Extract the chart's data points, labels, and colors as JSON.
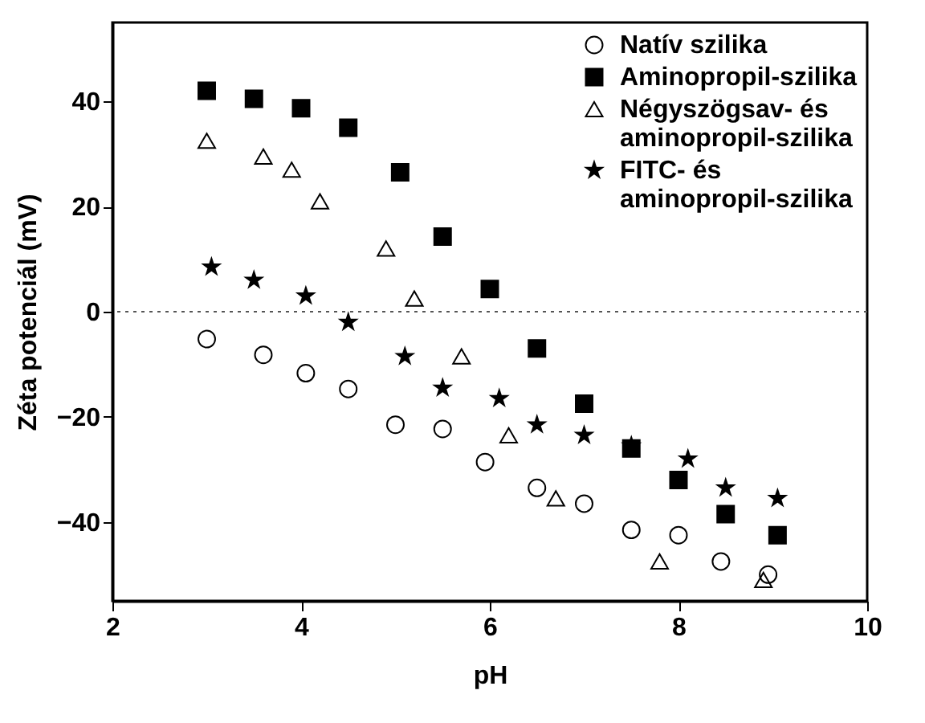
{
  "chart_data": {
    "type": "scatter",
    "xlabel": "pH",
    "ylabel": "Zéta potenciál (mV)",
    "xlim": [
      2,
      10
    ],
    "xticks": [
      2,
      4,
      6,
      8,
      10
    ],
    "ylim": [
      -55,
      55
    ],
    "yticks": [
      -40,
      -20,
      0,
      20,
      40
    ],
    "grid": false,
    "legend": "top right",
    "ref_lines": [
      {
        "axis": "y",
        "value": 0,
        "line_style": "dotted",
        "color": "#555555"
      }
    ],
    "series": [
      {
        "name": "Natív szilika",
        "color": "#000000",
        "marker": "circle",
        "x": [
          3,
          3.6,
          4.05,
          4.5,
          5,
          5.5,
          5.95,
          6.5,
          7,
          7.5,
          8,
          8.45,
          8.95
        ],
        "values": [
          -5.2,
          -8.2,
          -11.7,
          -14.7,
          -21.5,
          -22.3,
          -28.6,
          -33.5,
          -36.5,
          -41.5,
          -42.5,
          -47.5,
          -50
        ]
      },
      {
        "name": "Aminopropil-szilika",
        "color": "#000000",
        "marker": "square",
        "x": [
          3,
          3.5,
          4,
          4.5,
          5.05,
          5.5,
          6,
          6.5,
          7,
          7.5,
          8,
          8.5,
          9.05
        ],
        "values": [
          42,
          40.5,
          38.7,
          35,
          26.5,
          14.3,
          4.3,
          -7,
          -17.5,
          -26,
          -32,
          -38.5,
          -42.5
        ]
      },
      {
        "name": "Négyszögsav- és aminopropil-szilika",
        "color": "#000000",
        "marker": "triangle",
        "x": [
          3,
          3.6,
          3.9,
          4.2,
          4.9,
          5.2,
          5.7,
          6.2,
          6.7,
          7.8,
          8.9
        ],
        "values": [
          32.5,
          29.5,
          27,
          21,
          12,
          2.5,
          -8.5,
          -23.5,
          -35.5,
          -47.5,
          -51
        ]
      },
      {
        "name": "FITC- és aminopropil-szilika",
        "color": "#000000",
        "marker": "star",
        "x": [
          3.05,
          3.5,
          4.05,
          4.5,
          5.1,
          5.5,
          6.1,
          6.5,
          7,
          7.5,
          8.1,
          8.5,
          9.05
        ],
        "values": [
          8.5,
          6,
          3,
          -2,
          -8.5,
          -14.5,
          -16.5,
          -21.5,
          -23.5,
          -25.5,
          -28,
          -33.5,
          -35.5
        ]
      }
    ]
  }
}
